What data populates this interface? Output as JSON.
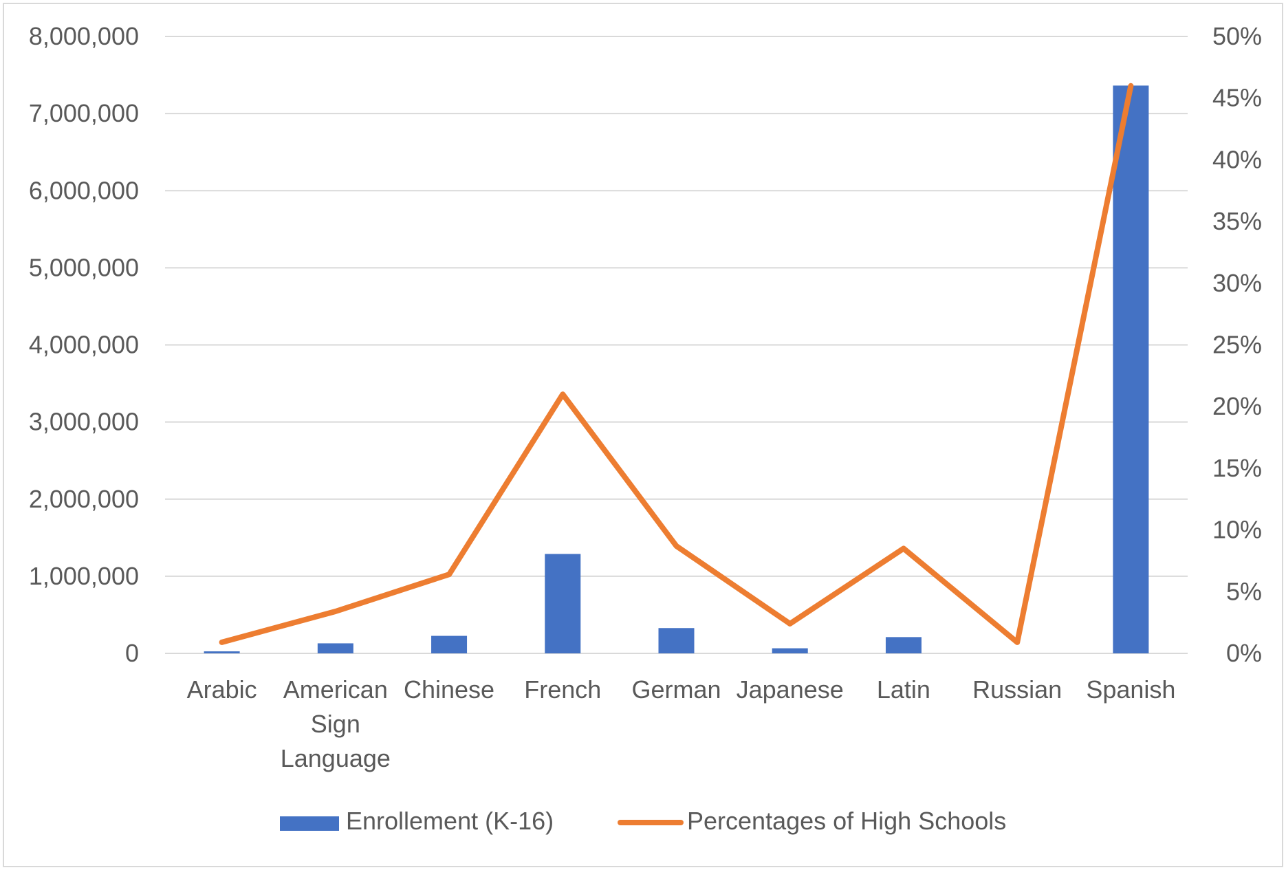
{
  "chart_data": {
    "type": "bar",
    "categories": [
      [
        "Arabic"
      ],
      [
        "American",
        "Sign",
        "Language"
      ],
      [
        "Chinese"
      ],
      [
        "French"
      ],
      [
        "German"
      ],
      [
        "Japanese"
      ],
      [
        "Latin"
      ],
      [
        "Russian"
      ],
      [
        "Spanish"
      ]
    ],
    "series": [
      {
        "name": "Enrollement (K-16)",
        "type": "bar",
        "axis": "left",
        "color": "#4472C4",
        "values": [
          26000,
          130000,
          227000,
          1289000,
          328000,
          66000,
          211000,
          0,
          7363000
        ]
      },
      {
        "name": "Percentages of High Schools",
        "type": "line",
        "axis": "right",
        "color": "#ED7D31",
        "values": [
          0.9,
          3.4,
          6.4,
          21.0,
          8.7,
          2.4,
          8.5,
          0.9,
          46.0
        ]
      }
    ],
    "y_left": {
      "range": [
        0,
        8000000
      ],
      "ticks": [
        "0",
        "1,000,000",
        "2,000,000",
        "3,000,000",
        "4,000,000",
        "5,000,000",
        "6,000,000",
        "7,000,000",
        "8,000,000"
      ]
    },
    "y_right": {
      "range": [
        0,
        50
      ],
      "ticks": [
        "0%",
        "5%",
        "10%",
        "15%",
        "20%",
        "25%",
        "30%",
        "35%",
        "40%",
        "45%",
        "50%"
      ]
    },
    "grid": true,
    "legend_position": "bottom",
    "title": "",
    "xlabel": "",
    "ylabel": ""
  },
  "colors": {
    "gridline": "#D9D9D9",
    "axis_text": "#595959",
    "border": "#D9D9D9"
  }
}
